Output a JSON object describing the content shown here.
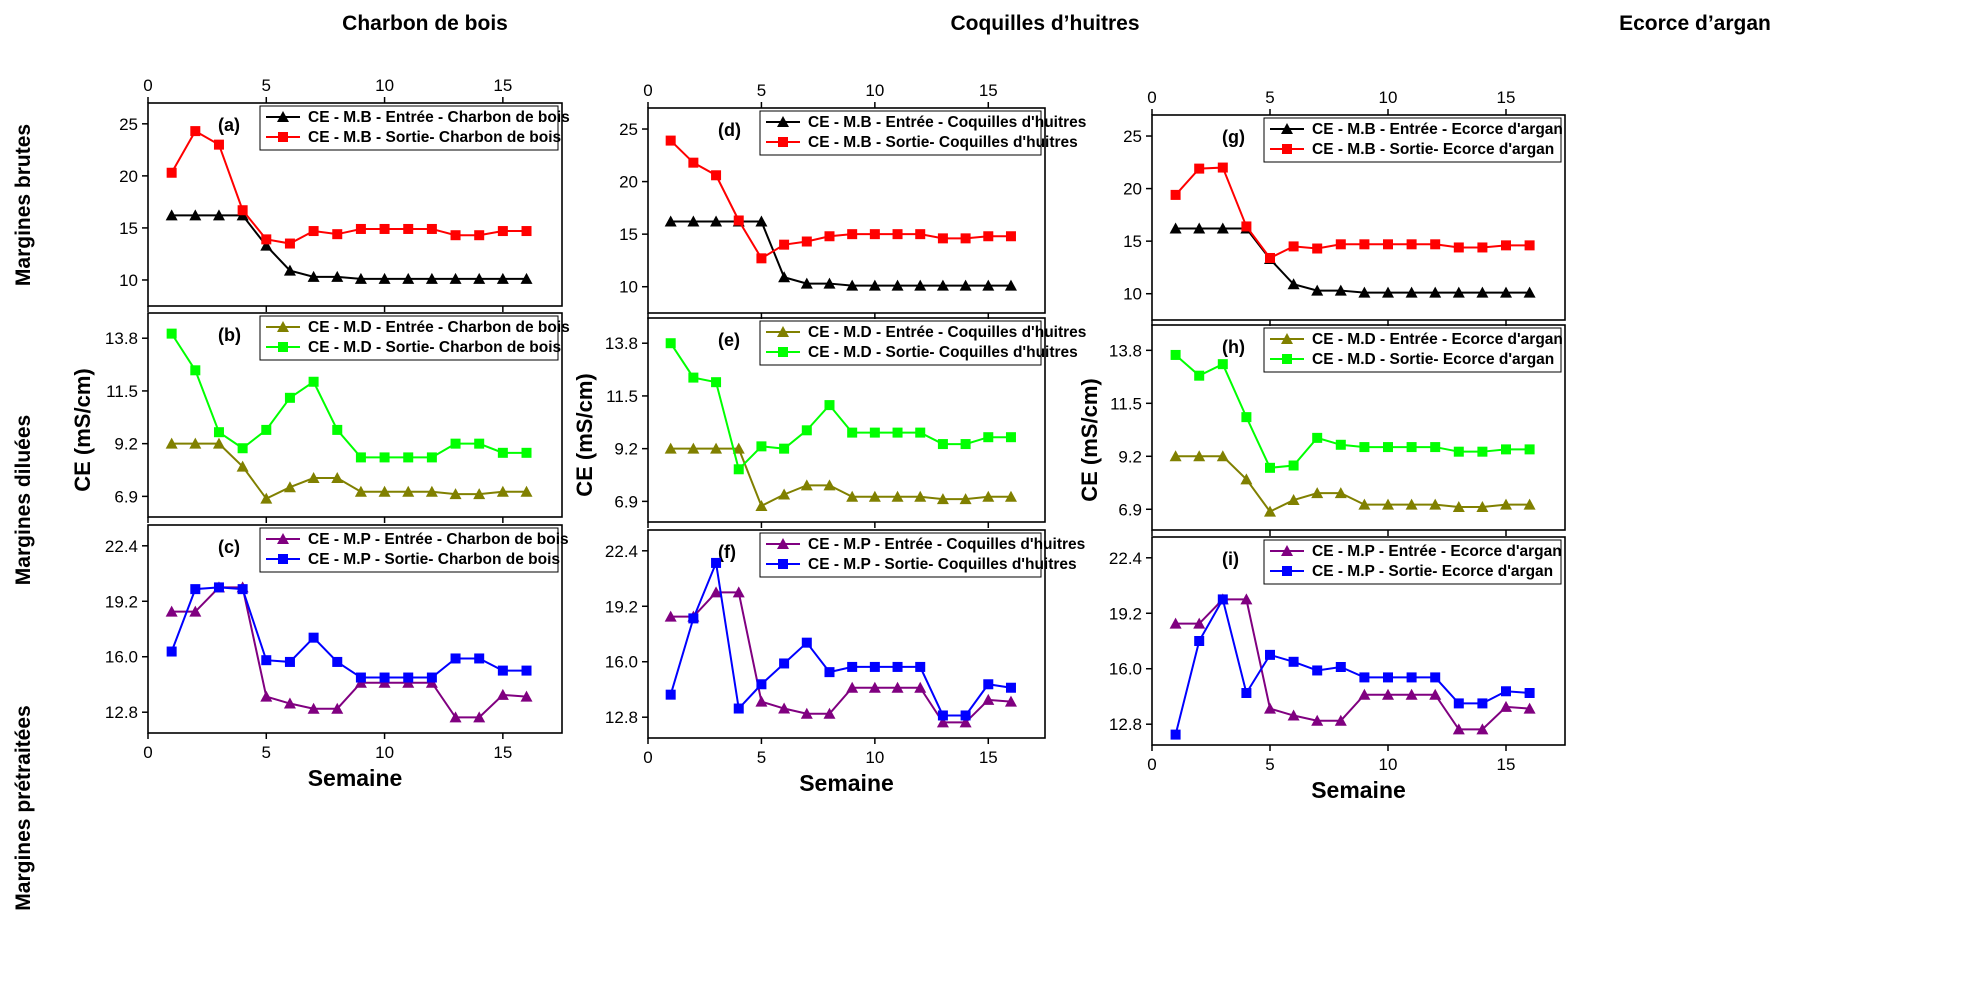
{
  "column_titles": [
    "Charbon de bois",
    "Coquilles d’huitres",
    "Ecorce d’argan"
  ],
  "row_titles": [
    "Margines brutes",
    "Margines diluées",
    "Margines prétraitées"
  ],
  "y_axis_label": "CE (mS/cm)",
  "x_axis_label": "Semaine",
  "colors": {
    "entree_mb": "#000000",
    "sortie_mb": "#ff0000",
    "entree_md": "#808000",
    "sortie_md": "#00ff00",
    "entree_mp": "#800080",
    "sortie_mp": "#0000ff"
  },
  "chart_data": [
    {
      "type": "line",
      "label": "(a)",
      "xlabel": "",
      "ylabel": "",
      "x_ticks": [
        0,
        5,
        10,
        15
      ],
      "xlim": [
        0,
        17.5
      ],
      "y_ticks": [
        "10",
        "15",
        "20",
        "25"
      ],
      "ylim": [
        7.5,
        27
      ],
      "x": [
        1,
        2,
        3,
        4,
        5,
        6,
        7,
        8,
        9,
        10,
        11,
        12,
        13,
        14,
        15,
        16
      ],
      "series": [
        {
          "name": "CE - M.B - Entrée - Charbon de bois",
          "marker": "triangle",
          "color": "#000000",
          "values": [
            16.2,
            16.2,
            16.2,
            16.2,
            13.3,
            10.9,
            10.3,
            10.3,
            10.1,
            10.1,
            10.1,
            10.1,
            10.1,
            10.1,
            10.1,
            10.1
          ]
        },
        {
          "name": "CE - M.B - Sortie- Charbon de bois",
          "marker": "square",
          "color": "#ff0000",
          "values": [
            20.3,
            24.3,
            23.0,
            16.7,
            13.9,
            13.5,
            14.7,
            14.4,
            14.9,
            14.9,
            14.9,
            14.9,
            14.3,
            14.3,
            14.7,
            14.7
          ]
        }
      ]
    },
    {
      "type": "line",
      "label": "(d)",
      "xlabel": "",
      "ylabel": "",
      "x_ticks": [
        0,
        5,
        10,
        15
      ],
      "xlim": [
        0,
        17.5
      ],
      "y_ticks": [
        "10",
        "15",
        "20",
        "25"
      ],
      "ylim": [
        7.5,
        27
      ],
      "x": [
        1,
        2,
        3,
        4,
        5,
        6,
        7,
        8,
        9,
        10,
        11,
        12,
        13,
        14,
        15,
        16
      ],
      "series": [
        {
          "name": "CE - M.B - Entrée - Coquilles d'huitres",
          "marker": "triangle",
          "color": "#000000",
          "values": [
            16.2,
            16.2,
            16.2,
            16.2,
            16.2,
            10.9,
            10.3,
            10.3,
            10.1,
            10.1,
            10.1,
            10.1,
            10.1,
            10.1,
            10.1,
            10.1
          ]
        },
        {
          "name": "CE - M.B - Sortie- Coquilles d'huitres",
          "marker": "square",
          "color": "#ff0000",
          "values": [
            23.9,
            21.8,
            20.6,
            16.3,
            12.7,
            14.0,
            14.3,
            14.8,
            15.0,
            15.0,
            15.0,
            15.0,
            14.6,
            14.6,
            14.8,
            14.8
          ]
        }
      ]
    },
    {
      "type": "line",
      "label": "(g)",
      "xlabel": "",
      "ylabel": "",
      "x_ticks": [
        0,
        5,
        10,
        15
      ],
      "xlim": [
        0,
        17.5
      ],
      "y_ticks": [
        "10",
        "15",
        "20",
        "25"
      ],
      "ylim": [
        7.5,
        27
      ],
      "x": [
        1,
        2,
        3,
        4,
        5,
        6,
        7,
        8,
        9,
        10,
        11,
        12,
        13,
        14,
        15,
        16
      ],
      "series": [
        {
          "name": "CE - M.B - Entrée - Ecorce d'argan",
          "marker": "triangle",
          "color": "#000000",
          "values": [
            16.2,
            16.2,
            16.2,
            16.2,
            13.3,
            10.9,
            10.3,
            10.3,
            10.1,
            10.1,
            10.1,
            10.1,
            10.1,
            10.1,
            10.1,
            10.1
          ]
        },
        {
          "name": "CE - M.B - Sortie- Ecorce d'argan",
          "marker": "square",
          "color": "#ff0000",
          "values": [
            19.4,
            21.9,
            22.0,
            16.4,
            13.4,
            14.5,
            14.3,
            14.7,
            14.7,
            14.7,
            14.7,
            14.7,
            14.4,
            14.4,
            14.6,
            14.6
          ]
        }
      ]
    },
    {
      "type": "line",
      "label": "(b)",
      "xlabel": "",
      "ylabel": "",
      "x_ticks": [
        0,
        5,
        10,
        15
      ],
      "xlim": [
        0,
        17.5
      ],
      "y_ticks": [
        "6.9",
        "9.2",
        "11.5",
        "13.8"
      ],
      "ylim": [
        6.0,
        14.9
      ],
      "x": [
        1,
        2,
        3,
        4,
        5,
        6,
        7,
        8,
        9,
        10,
        11,
        12,
        13,
        14,
        15,
        16
      ],
      "series": [
        {
          "name": "CE - M.D - Entrée - Charbon de bois",
          "marker": "triangle",
          "color": "#808000",
          "values": [
            9.2,
            9.2,
            9.2,
            8.2,
            6.8,
            7.3,
            7.7,
            7.7,
            7.1,
            7.1,
            7.1,
            7.1,
            7.0,
            7.0,
            7.1,
            7.1
          ]
        },
        {
          "name": "CE - M.D - Sortie- Charbon de bois",
          "marker": "square",
          "color": "#00ff00",
          "values": [
            14.0,
            12.4,
            9.7,
            9.0,
            9.8,
            11.2,
            11.9,
            9.8,
            8.6,
            8.6,
            8.6,
            8.6,
            9.2,
            9.2,
            8.8,
            8.8
          ]
        }
      ]
    },
    {
      "type": "line",
      "label": "(e)",
      "xlabel": "",
      "ylabel": "",
      "x_ticks": [
        0,
        5,
        10,
        15
      ],
      "xlim": [
        0,
        17.5
      ],
      "y_ticks": [
        "6.9",
        "9.2",
        "11.5",
        "13.8"
      ],
      "ylim": [
        6.0,
        14.9
      ],
      "x": [
        1,
        2,
        3,
        4,
        5,
        6,
        7,
        8,
        9,
        10,
        11,
        12,
        13,
        14,
        15,
        16
      ],
      "series": [
        {
          "name": "CE - M.D - Entrée - Coquilles d'huitres",
          "marker": "triangle",
          "color": "#808000",
          "values": [
            9.2,
            9.2,
            9.2,
            9.2,
            6.7,
            7.2,
            7.6,
            7.6,
            7.1,
            7.1,
            7.1,
            7.1,
            7.0,
            7.0,
            7.1,
            7.1
          ]
        },
        {
          "name": "CE - M.D - Sortie- Coquilles d'huitres",
          "marker": "square",
          "color": "#00ff00",
          "values": [
            13.8,
            12.3,
            12.1,
            8.3,
            9.3,
            9.2,
            10.0,
            11.1,
            9.9,
            9.9,
            9.9,
            9.9,
            9.4,
            9.4,
            9.7,
            9.7
          ]
        }
      ]
    },
    {
      "type": "line",
      "label": "(h)",
      "xlabel": "",
      "ylabel": "",
      "x_ticks": [
        0,
        5,
        10,
        15
      ],
      "xlim": [
        0,
        17.5
      ],
      "y_ticks": [
        "6.9",
        "9.2",
        "11.5",
        "13.8"
      ],
      "ylim": [
        6.0,
        14.9
      ],
      "x": [
        1,
        2,
        3,
        4,
        5,
        6,
        7,
        8,
        9,
        10,
        11,
        12,
        13,
        14,
        15,
        16
      ],
      "series": [
        {
          "name": "CE - M.D - Entrée - Ecorce d'argan",
          "marker": "triangle",
          "color": "#808000",
          "values": [
            9.2,
            9.2,
            9.2,
            8.2,
            6.8,
            7.3,
            7.6,
            7.6,
            7.1,
            7.1,
            7.1,
            7.1,
            7.0,
            7.0,
            7.1,
            7.1
          ]
        },
        {
          "name": "CE - M.D - Sortie- Ecorce d'argan",
          "marker": "square",
          "color": "#00ff00",
          "values": [
            13.6,
            12.7,
            13.2,
            10.9,
            8.7,
            8.8,
            10.0,
            9.7,
            9.6,
            9.6,
            9.6,
            9.6,
            9.4,
            9.4,
            9.5,
            9.5
          ]
        }
      ]
    },
    {
      "type": "line",
      "label": "(c)",
      "xlabel": "Semaine",
      "ylabel": "",
      "x_ticks": [
        0,
        5,
        10,
        15
      ],
      "xlim": [
        0,
        17.5
      ],
      "y_ticks": [
        "12.8",
        "16.0",
        "19.2",
        "22.4"
      ],
      "ylim": [
        11.6,
        23.6
      ],
      "x": [
        1,
        2,
        3,
        4,
        5,
        6,
        7,
        8,
        9,
        10,
        11,
        12,
        13,
        14,
        15,
        16
      ],
      "series": [
        {
          "name": "CE - M.P - Entrée - Charbon de bois",
          "marker": "triangle",
          "color": "#800080",
          "values": [
            18.6,
            18.6,
            20.0,
            20.0,
            13.7,
            13.3,
            13.0,
            13.0,
            14.5,
            14.5,
            14.5,
            14.5,
            12.5,
            12.5,
            13.8,
            13.7
          ]
        },
        {
          "name": "CE - M.P - Sortie- Charbon de bois",
          "marker": "square",
          "color": "#0000ff",
          "values": [
            16.3,
            19.9,
            20.0,
            19.9,
            15.8,
            15.7,
            17.1,
            15.7,
            14.8,
            14.8,
            14.8,
            14.8,
            15.9,
            15.9,
            15.2,
            15.2
          ]
        }
      ]
    },
    {
      "type": "line",
      "label": "(f)",
      "xlabel": "Semaine",
      "ylabel": "",
      "x_ticks": [
        0,
        5,
        10,
        15
      ],
      "xlim": [
        0,
        17.5
      ],
      "y_ticks": [
        "12.8",
        "16.0",
        "19.2",
        "22.4"
      ],
      "ylim": [
        11.6,
        23.6
      ],
      "x": [
        1,
        2,
        3,
        4,
        5,
        6,
        7,
        8,
        9,
        10,
        11,
        12,
        13,
        14,
        15,
        16
      ],
      "series": [
        {
          "name": "CE - M.P - Entrée - Coquilles d'huitres",
          "marker": "triangle",
          "color": "#800080",
          "values": [
            18.6,
            18.6,
            20.0,
            20.0,
            13.7,
            13.3,
            13.0,
            13.0,
            14.5,
            14.5,
            14.5,
            14.5,
            12.5,
            12.5,
            13.8,
            13.7
          ]
        },
        {
          "name": "CE - M.P - Sortie- Coquilles d'huitres",
          "marker": "square",
          "color": "#0000ff",
          "values": [
            14.1,
            18.5,
            21.7,
            13.3,
            14.7,
            15.9,
            17.1,
            15.4,
            15.7,
            15.7,
            15.7,
            15.7,
            12.9,
            12.9,
            14.7,
            14.5
          ]
        }
      ]
    },
    {
      "type": "line",
      "label": "(i)",
      "xlabel": "Semaine",
      "ylabel": "",
      "x_ticks": [
        0,
        5,
        10,
        15
      ],
      "xlim": [
        0,
        17.5
      ],
      "y_ticks": [
        "12.8",
        "16.0",
        "19.2",
        "22.4"
      ],
      "ylim": [
        11.6,
        23.6
      ],
      "x": [
        1,
        2,
        3,
        4,
        5,
        6,
        7,
        8,
        9,
        10,
        11,
        12,
        13,
        14,
        15,
        16
      ],
      "series": [
        {
          "name": "CE - M.P - Entrée - Ecorce d'argan",
          "marker": "triangle",
          "color": "#800080",
          "values": [
            18.6,
            18.6,
            20.0,
            20.0,
            13.7,
            13.3,
            13.0,
            13.0,
            14.5,
            14.5,
            14.5,
            14.5,
            12.5,
            12.5,
            13.8,
            13.7
          ]
        },
        {
          "name": "CE - M.P - Sortie- Ecorce d'argan",
          "marker": "square",
          "color": "#0000ff",
          "values": [
            12.2,
            17.6,
            20.0,
            14.6,
            16.8,
            16.4,
            15.9,
            16.1,
            15.5,
            15.5,
            15.5,
            15.5,
            14.0,
            14.0,
            14.7,
            14.6
          ]
        }
      ]
    }
  ]
}
